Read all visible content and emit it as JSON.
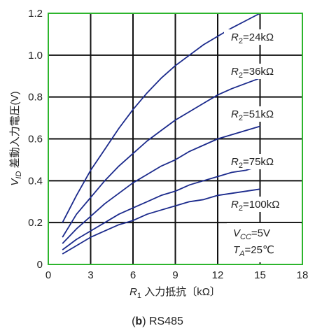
{
  "chart_data": {
    "type": "line",
    "title": "",
    "xlabel": "R₁ 入力抵抗〔kΩ〕",
    "ylabel": "V_ID 差動入力電圧(V)",
    "ylabel_parts": {
      "symbol": "V",
      "subscript": "ID",
      "text": " 差動入力電圧(V)"
    },
    "xlabel_parts": {
      "symbol": "R",
      "subscript": "1",
      "text": " 入力抵抗〔kΩ〕"
    },
    "xlim": [
      0,
      18
    ],
    "ylim": [
      0,
      1.2
    ],
    "x_ticks": [
      "0",
      "3",
      "6",
      "9",
      "12",
      "15",
      "18"
    ],
    "y_ticks": [
      "0",
      "0.2",
      "0.4",
      "0.6",
      "0.8",
      "1.0",
      "1.2"
    ],
    "grid": true,
    "series": [
      {
        "name": "R₂ = 24kΩ",
        "label_parts": {
          "symbol": "R",
          "subscript": "2",
          "value": "=24kΩ"
        },
        "x": [
          1,
          2,
          3,
          4,
          5,
          6,
          7,
          8,
          9,
          10,
          11,
          12,
          13,
          14,
          15
        ],
        "y": [
          0.2,
          0.33,
          0.45,
          0.55,
          0.65,
          0.74,
          0.82,
          0.89,
          0.95,
          1.0,
          1.05,
          1.09,
          1.13,
          1.165,
          1.2
        ]
      },
      {
        "name": "R₂ = 36kΩ",
        "label_parts": {
          "symbol": "R",
          "subscript": "2",
          "value": "=36kΩ"
        },
        "x": [
          1,
          2,
          3,
          4,
          5,
          6,
          7,
          8,
          9,
          10,
          11,
          12,
          13,
          14,
          15
        ],
        "y": [
          0.13,
          0.24,
          0.32,
          0.4,
          0.47,
          0.53,
          0.59,
          0.64,
          0.69,
          0.73,
          0.77,
          0.81,
          0.84,
          0.865,
          0.89
        ]
      },
      {
        "name": "R₂ = 51kΩ",
        "label_parts": {
          "symbol": "R",
          "subscript": "2",
          "value": "=51kΩ"
        },
        "x": [
          1,
          2,
          3,
          4,
          5,
          6,
          7,
          8,
          9,
          10,
          11,
          12,
          13,
          14,
          15
        ],
        "y": [
          0.1,
          0.17,
          0.23,
          0.29,
          0.34,
          0.39,
          0.43,
          0.47,
          0.5,
          0.54,
          0.57,
          0.6,
          0.62,
          0.64,
          0.66
        ]
      },
      {
        "name": "R₂ = 75kΩ",
        "label_parts": {
          "symbol": "R",
          "subscript": "2",
          "value": "=75kΩ"
        },
        "x": [
          1,
          2,
          3,
          4,
          5,
          6,
          7,
          8,
          9,
          10,
          11,
          12,
          13,
          14,
          15
        ],
        "y": [
          0.07,
          0.12,
          0.16,
          0.2,
          0.24,
          0.27,
          0.3,
          0.33,
          0.35,
          0.38,
          0.4,
          0.42,
          0.44,
          0.45,
          0.47
        ]
      },
      {
        "name": "R₂ = 100kΩ",
        "label_parts": {
          "symbol": "R",
          "subscript": "2",
          "value": "=100kΩ"
        },
        "x": [
          1,
          2,
          3,
          4,
          5,
          6,
          7,
          8,
          9,
          10,
          11,
          12,
          13,
          14,
          15
        ],
        "y": [
          0.05,
          0.09,
          0.13,
          0.16,
          0.19,
          0.21,
          0.24,
          0.26,
          0.28,
          0.3,
          0.31,
          0.33,
          0.34,
          0.35,
          0.36
        ]
      }
    ],
    "conditions": {
      "vcc": {
        "symbol": "V",
        "subscript": "CC",
        "value": "=5V"
      },
      "ta": {
        "symbol": "T",
        "subscript": "A",
        "value": "=25℃"
      }
    },
    "caption": "(b) RS485",
    "caption_parts": {
      "open": "(",
      "letter": "b",
      "close": ")",
      "text": " RS485"
    }
  },
  "colors": {
    "line": "#1b2a8c",
    "grid": "#111111",
    "frame": "#2db52d",
    "text": "#222222"
  }
}
